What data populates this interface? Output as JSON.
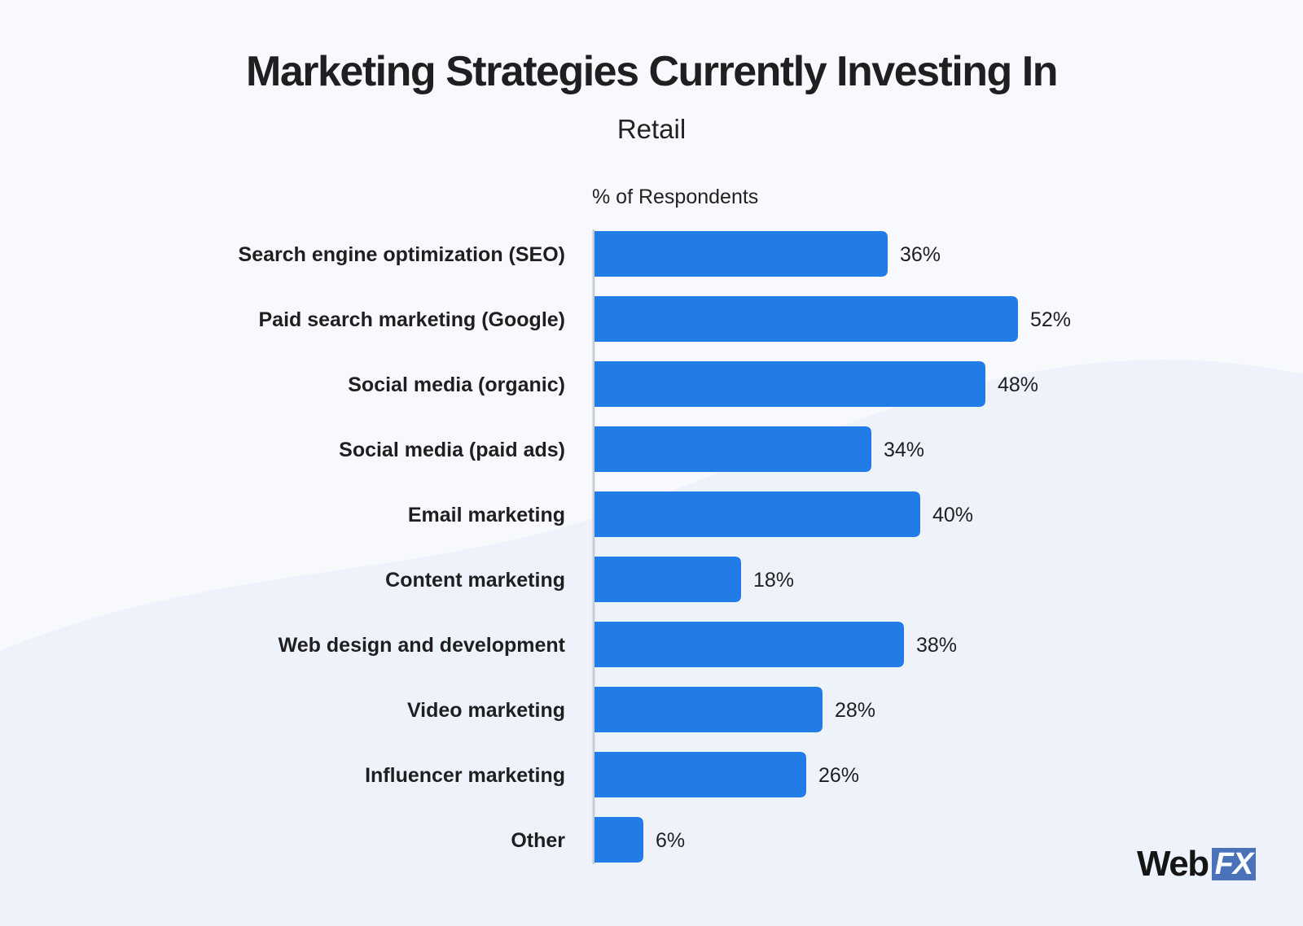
{
  "chart_data": {
    "type": "bar",
    "orientation": "horizontal",
    "title": "Marketing Strategies Currently Investing In",
    "subtitle": "Retail",
    "xlabel": "% of Respondents",
    "categories": [
      "Search engine optimization (SEO)",
      "Paid search marketing (Google)",
      "Social media (organic)",
      "Social media (paid ads)",
      "Email marketing",
      "Content marketing",
      "Web design and development",
      "Video marketing",
      "Influencer marketing",
      "Other"
    ],
    "values": [
      36,
      52,
      48,
      34,
      40,
      18,
      38,
      28,
      26,
      6
    ],
    "value_labels": [
      "36%",
      "52%",
      "48%",
      "34%",
      "40%",
      "18%",
      "38%",
      "28%",
      "26%",
      "6%"
    ],
    "xlim": [
      0,
      100
    ],
    "grid": false,
    "legend": "none",
    "bar_color": "#217ce8"
  },
  "logo": {
    "web_text": "Web",
    "fx_text": "FX"
  },
  "colors": {
    "background": "#f7f9fd",
    "wave": "#eef3fb",
    "axis_line": "#c7cbd4",
    "logo_fx_bg": "#4a72b8"
  }
}
